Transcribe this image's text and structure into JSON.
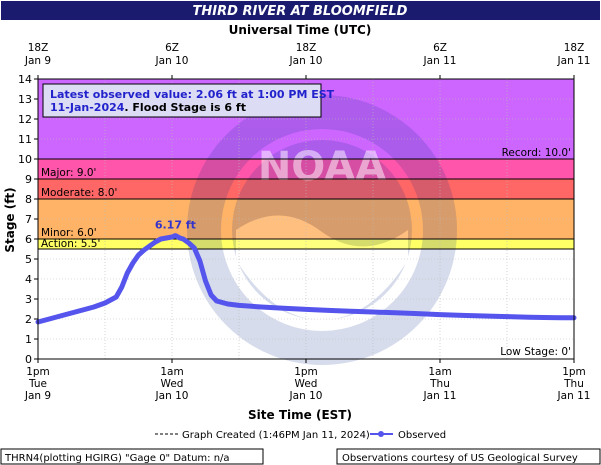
{
  "header": {
    "title": "THIRD RIVER AT BLOOMFIELD",
    "utc_label": "Universal Time (UTC)",
    "site_time_label": "Site Time (EST)"
  },
  "top_axis_ticks": [
    {
      "time": "18Z",
      "date": "Jan 9"
    },
    {
      "time": "6Z",
      "date": "Jan 10"
    },
    {
      "time": "18Z",
      "date": "Jan 10"
    },
    {
      "time": "6Z",
      "date": "Jan 11"
    },
    {
      "time": "18Z",
      "date": "Jan 11"
    }
  ],
  "bottom_axis_ticks": [
    {
      "time": "1pm",
      "day": "Tue",
      "date": "Jan 9"
    },
    {
      "time": "1am",
      "day": "Wed",
      "date": "Jan 10"
    },
    {
      "time": "1pm",
      "day": "Wed",
      "date": "Jan 10"
    },
    {
      "time": "1am",
      "day": "Thu",
      "date": "Jan 11"
    },
    {
      "time": "1pm",
      "day": "Thu",
      "date": "Jan 11"
    }
  ],
  "info_box": {
    "line1": "Latest observed value: 2.06 ft at 1:00 PM EST",
    "line2_date": "11-Jan-2024",
    "line2_rest": ". Flood Stage is 6 ft"
  },
  "stage_labels": {
    "record": "Record: 10.0'",
    "major": "Major: 9.0'",
    "moderate": "Moderate: 8.0'",
    "minor": "Minor: 6.0'",
    "action": "Action: 5.5'",
    "low": "Low Stage: 0'"
  },
  "legend": {
    "created": "Graph Created (1:46PM Jan 11, 2024)",
    "observed": "Observed"
  },
  "footer": {
    "left": "THRN4(plotting HGIRG) \"Gage 0\" Datum: n/a",
    "right": "Observations courtesy of US Geological Survey"
  },
  "colors": {
    "title_bg": "#1a1a6e",
    "record_band": "#cc66ff",
    "major_band": "#ff55aa",
    "moderate_band": "#ff6666",
    "minor_band": "#ffb366",
    "action_band": "#ffff66",
    "series": "#5555ee",
    "peak_label": "#3333cc"
  },
  "chart_data": {
    "type": "line",
    "title": "THIRD RIVER AT BLOOMFIELD",
    "xlabel": "Site Time (EST)",
    "ylabel": "Stage (ft)",
    "ylim": [
      0,
      14
    ],
    "yticks": [
      0,
      1,
      2,
      3,
      4,
      5,
      6,
      7,
      8,
      9,
      10,
      11,
      12,
      13,
      14
    ],
    "x_range_hours_from_jan9_1pm": [
      0,
      48
    ],
    "grid": true,
    "peak_label": "6.17 ft",
    "series": [
      {
        "name": "Observed",
        "points": [
          [
            0,
            1.85
          ],
          [
            1,
            2.0
          ],
          [
            2,
            2.15
          ],
          [
            3,
            2.3
          ],
          [
            4,
            2.45
          ],
          [
            5,
            2.6
          ],
          [
            6,
            2.8
          ],
          [
            7,
            3.1
          ],
          [
            7.5,
            3.6
          ],
          [
            8,
            4.3
          ],
          [
            8.5,
            4.8
          ],
          [
            9,
            5.2
          ],
          [
            9.5,
            5.45
          ],
          [
            10,
            5.65
          ],
          [
            10.5,
            5.85
          ],
          [
            11,
            6.0
          ],
          [
            11.5,
            6.05
          ],
          [
            12,
            6.1
          ],
          [
            12.3,
            6.17
          ],
          [
            12.7,
            6.05
          ],
          [
            13,
            6.0
          ],
          [
            13.5,
            5.8
          ],
          [
            14,
            5.55
          ],
          [
            14.5,
            4.9
          ],
          [
            15,
            3.9
          ],
          [
            15.5,
            3.2
          ],
          [
            16,
            2.9
          ],
          [
            17,
            2.75
          ],
          [
            18,
            2.68
          ],
          [
            20,
            2.6
          ],
          [
            22,
            2.54
          ],
          [
            24,
            2.48
          ],
          [
            26,
            2.43
          ],
          [
            28,
            2.39
          ],
          [
            30,
            2.35
          ],
          [
            32,
            2.31
          ],
          [
            34,
            2.27
          ],
          [
            36,
            2.22
          ],
          [
            38,
            2.18
          ],
          [
            40,
            2.15
          ],
          [
            42,
            2.12
          ],
          [
            44,
            2.09
          ],
          [
            46,
            2.07
          ],
          [
            47,
            2.06
          ],
          [
            48,
            2.06
          ]
        ]
      }
    ]
  }
}
